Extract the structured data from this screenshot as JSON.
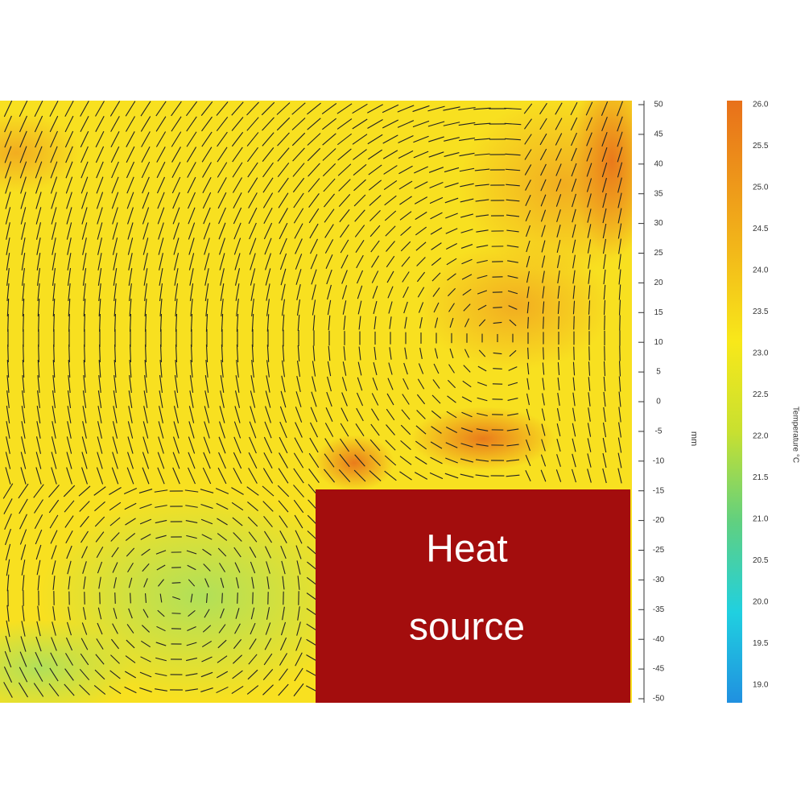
{
  "figure": {
    "heat_source_label": [
      "Heat",
      "source"
    ],
    "axis_unit": "mm",
    "axis_ticks": [
      "50",
      "45",
      "40",
      "35",
      "30",
      "25",
      "20",
      "15",
      "10",
      "5",
      "0",
      "-5",
      "-10",
      "-15",
      "-20",
      "-25",
      "-30",
      "-35",
      "-40",
      "-45",
      "-50"
    ],
    "colorbar_title": "Temperature °C",
    "colorbar_ticks": [
      "26.0",
      "25.5",
      "25.0",
      "24.5",
      "24.0",
      "23.5",
      "23.0",
      "22.5",
      "22.0",
      "21.5",
      "21.0",
      "20.5",
      "20.0",
      "19.5",
      "19.0"
    ]
  }
}
